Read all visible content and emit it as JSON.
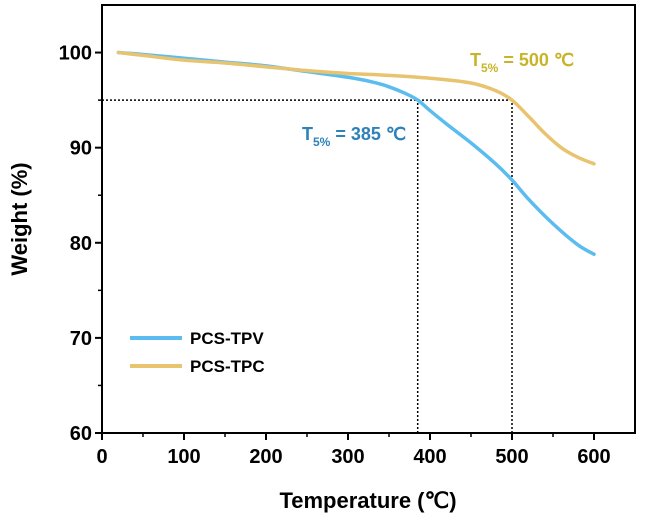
{
  "chart_data": {
    "type": "line",
    "xlabel": "Temperature (℃)",
    "ylabel": "Weight (%)",
    "xlim": [
      0,
      650
    ],
    "ylim": [
      60,
      105
    ],
    "xticks": [
      0,
      100,
      200,
      300,
      400,
      500,
      600
    ],
    "yticks": [
      60,
      70,
      80,
      90,
      100
    ],
    "grid": false,
    "legend_position": "bottom-left",
    "series": [
      {
        "name": "PCS-TPV",
        "color": "#5bbcf0",
        "x": [
          20,
          50,
          100,
          150,
          200,
          250,
          300,
          330,
          350,
          370,
          385,
          400,
          420,
          450,
          480,
          500,
          520,
          550,
          580,
          600
        ],
        "y": [
          100,
          99.8,
          99.4,
          99.0,
          98.6,
          98.0,
          97.4,
          96.9,
          96.4,
          95.7,
          95.0,
          93.9,
          92.5,
          90.5,
          88.3,
          86.6,
          84.6,
          82.0,
          79.8,
          78.8
        ]
      },
      {
        "name": "PCS-TPC",
        "color": "#e8c470",
        "x": [
          20,
          50,
          100,
          150,
          200,
          250,
          300,
          350,
          400,
          450,
          480,
          500,
          520,
          540,
          560,
          580,
          600
        ],
        "y": [
          100,
          99.7,
          99.2,
          98.9,
          98.5,
          98.1,
          97.8,
          97.6,
          97.3,
          96.8,
          96.0,
          95.0,
          93.3,
          91.5,
          90.0,
          89.0,
          88.3
        ]
      }
    ],
    "reference_lines": [
      {
        "type": "horizontal",
        "y": 95,
        "x_from": 0,
        "x_to": 500
      },
      {
        "type": "vertical",
        "x": 385,
        "y_from": 60,
        "y_to": 95
      },
      {
        "type": "vertical",
        "x": 500,
        "y_from": 60,
        "y_to": 95
      }
    ],
    "annotations": [
      {
        "id": "tpc",
        "main": "T",
        "sub": "5%",
        "value": " = 500 ℃",
        "color": "#c8b428"
      },
      {
        "id": "tpv",
        "main": "T",
        "sub": "5%",
        "value": " = 385 ℃",
        "color": "#2e82b8"
      }
    ]
  }
}
